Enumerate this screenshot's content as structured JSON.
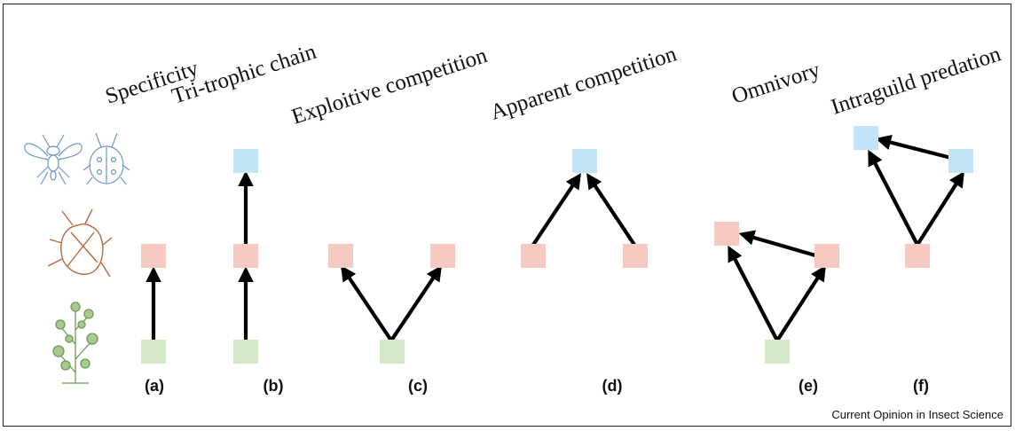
{
  "titles": {
    "a": "Specificity",
    "b": "Tri-trophic chain",
    "c": "Exploitive competition",
    "d": "Apparent competition",
    "e": "Omnivory",
    "f": "Intraguild predation"
  },
  "panels": {
    "a": "(a)",
    "b": "(b)",
    "c": "(c)",
    "d": "(d)",
    "e": "(e)",
    "f": "(f)"
  },
  "credit": "Current Opinion in Insect Science",
  "colors": {
    "plant": "#d3e8c6",
    "herbivore": "#f6c9c2",
    "predator": "#bfe4f6",
    "arrow": "#000000",
    "plant_icon": "#6d9a52",
    "herbivore_icon": "#b8683d",
    "predator_icon": "#6f96c6"
  },
  "icons": {
    "predator": "wasp-and-ladybird-icon",
    "herbivore": "bug-icon",
    "plant": "plant-icon"
  }
}
